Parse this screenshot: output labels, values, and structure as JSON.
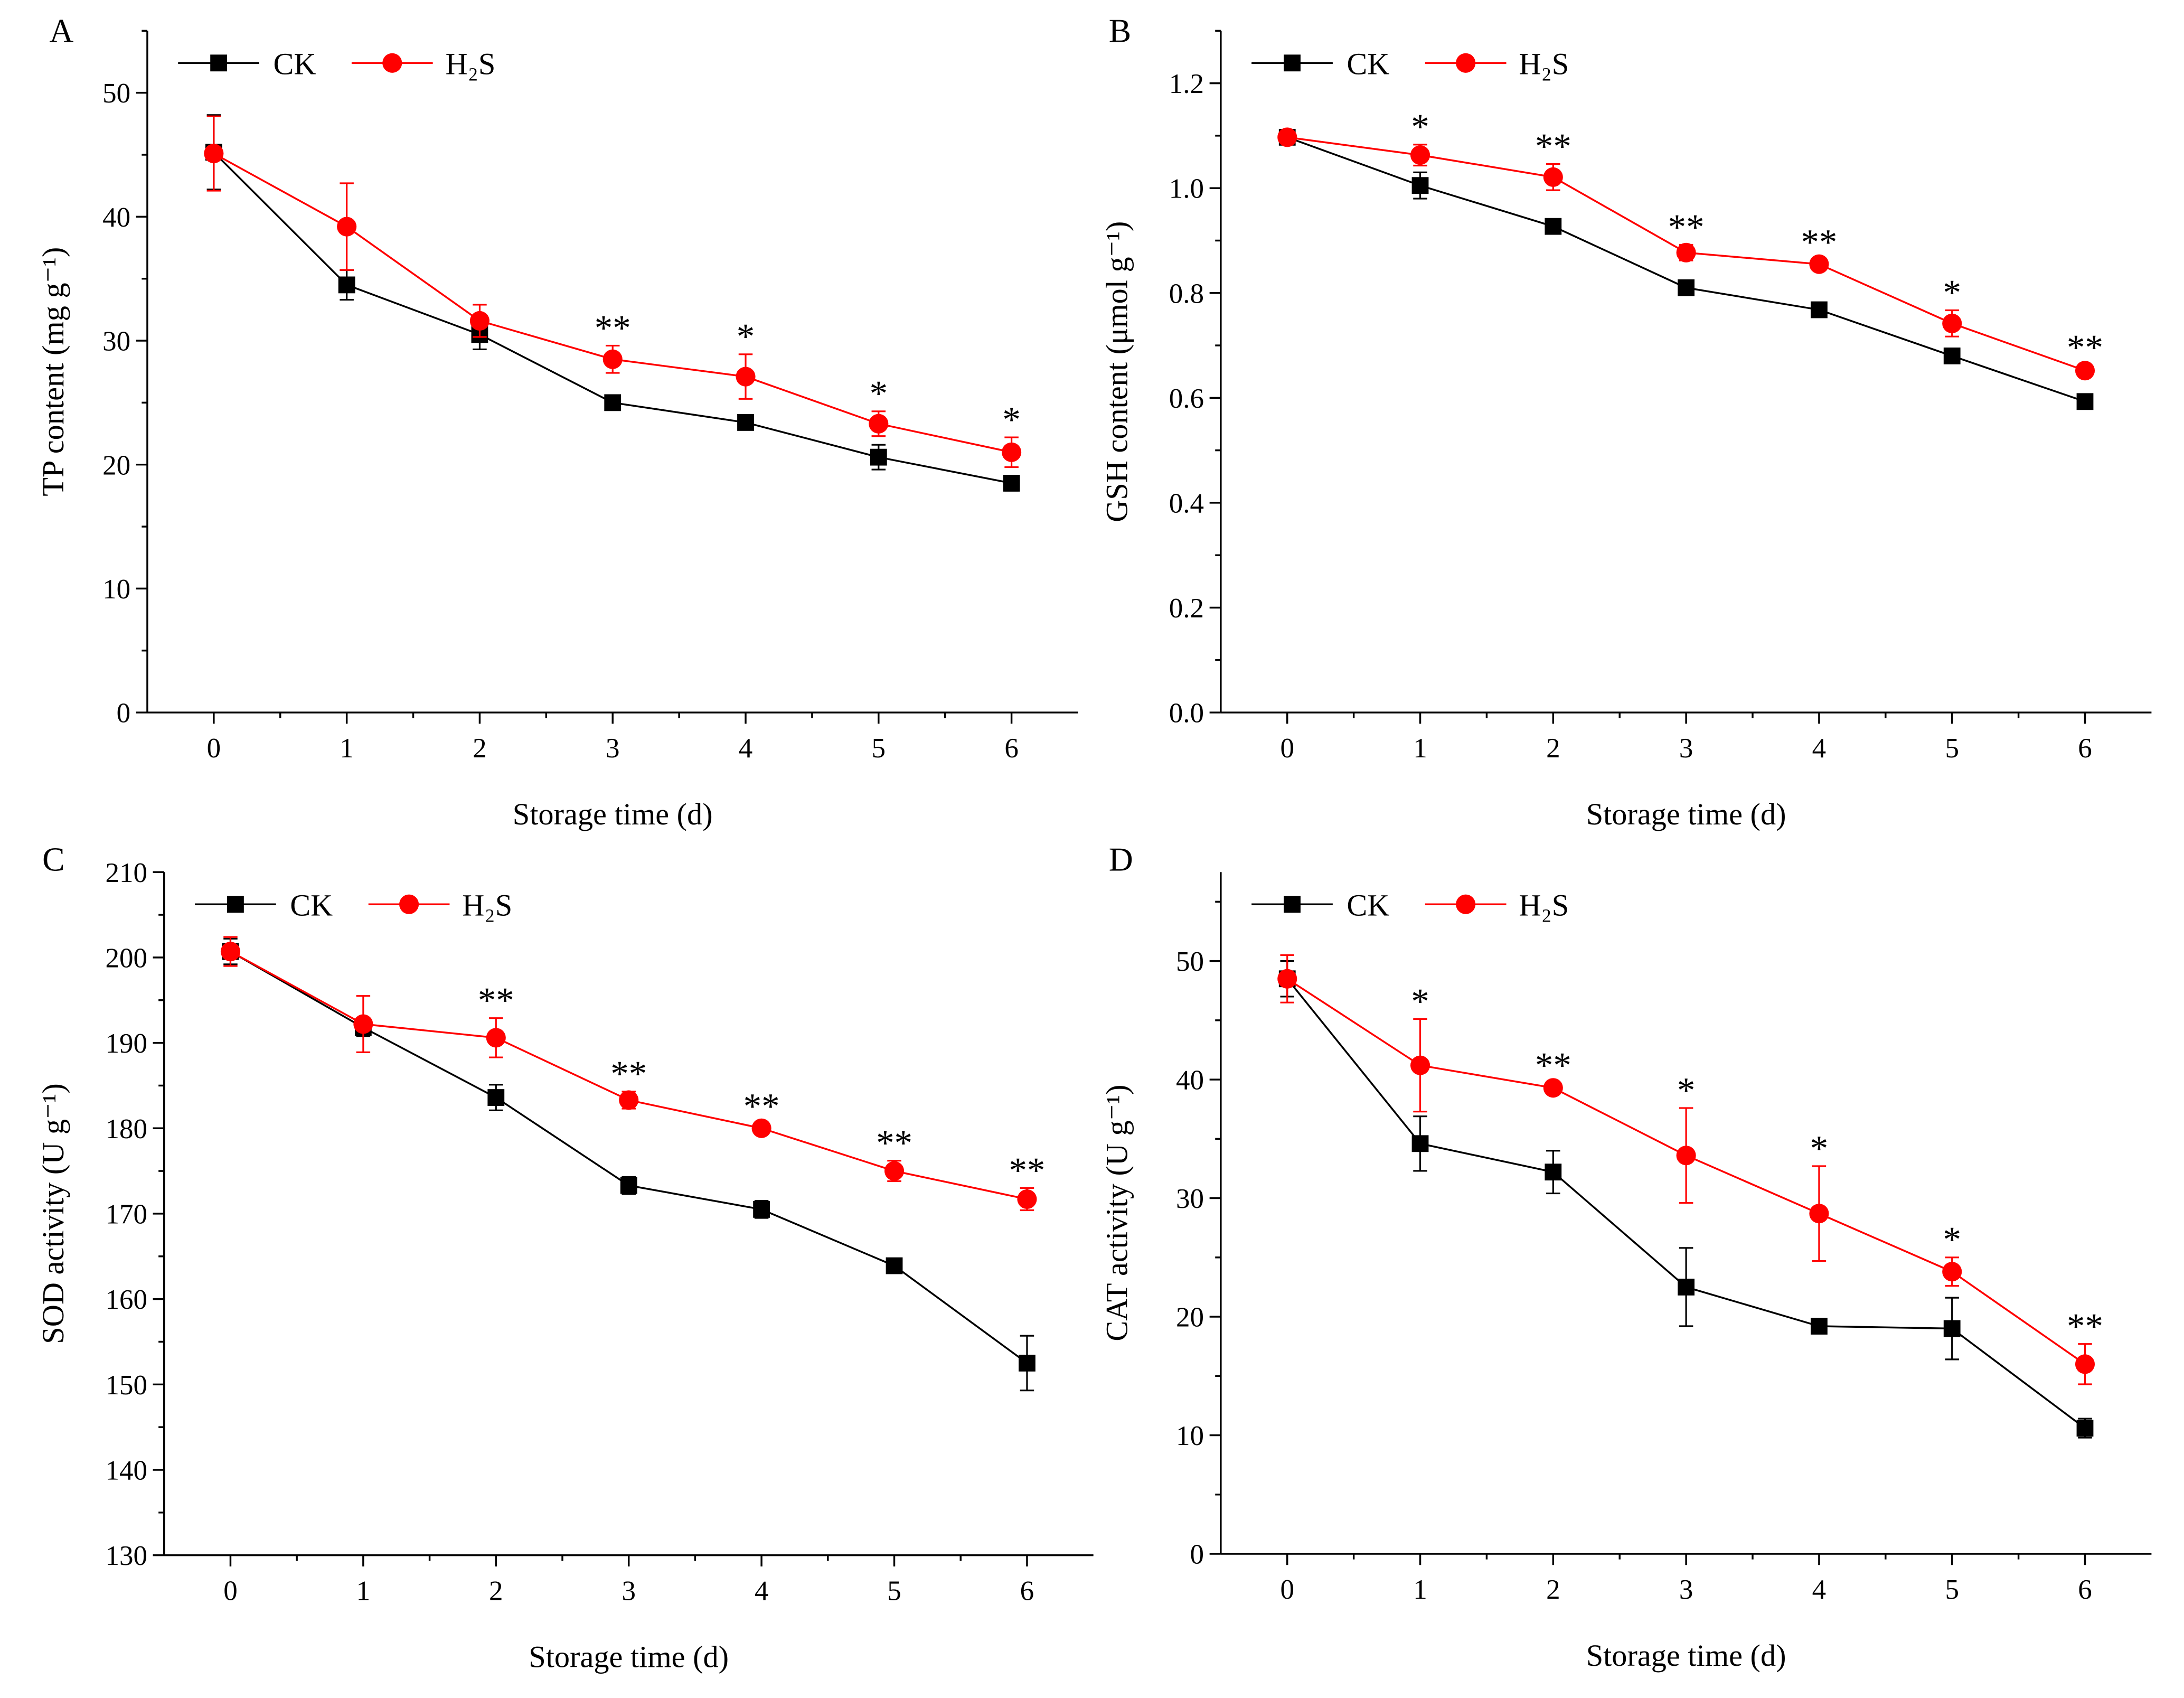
{
  "colors": {
    "CK": "#000000",
    "H2S": "#ff0000"
  },
  "chart_data": [
    {
      "type": "line",
      "panel": "A",
      "xlabel": "Storage time (d)",
      "ylabel": "TP content (mg g⁻¹)",
      "x": [
        0,
        1,
        2,
        3,
        4,
        5,
        6
      ],
      "xlim": [
        -0.5,
        6.5
      ],
      "ylim": [
        0,
        55
      ],
      "yticks": [
        0,
        10,
        20,
        30,
        40,
        50
      ],
      "ytick_labels": [
        "0",
        "10",
        "20",
        "30",
        "40",
        "50"
      ],
      "legend_placement": "top-left",
      "series": [
        {
          "name": "CK",
          "marker": "square",
          "values": [
            45.2,
            34.5,
            30.5,
            25.0,
            23.4,
            20.6,
            18.5
          ],
          "errors": [
            3.0,
            1.2,
            1.2,
            0.4,
            0.4,
            1.0,
            0.6
          ]
        },
        {
          "name": "H₂S",
          "marker": "circle",
          "values": [
            45.1,
            39.2,
            31.6,
            28.5,
            27.1,
            23.3,
            21.0
          ],
          "errors": [
            3.0,
            3.5,
            1.3,
            1.1,
            1.8,
            1.0,
            1.2
          ]
        }
      ],
      "significance": [
        "",
        "",
        "",
        "**",
        "*",
        "*",
        "*"
      ]
    },
    {
      "type": "line",
      "panel": "B",
      "xlabel": "Storage time (d)",
      "ylabel": "GSH content (μmol g⁻¹)",
      "x": [
        0,
        1,
        2,
        3,
        4,
        5,
        6
      ],
      "xlim": [
        -0.5,
        6.5
      ],
      "ylim": [
        0,
        1.3
      ],
      "yticks": [
        0,
        0.2,
        0.4,
        0.6,
        0.8,
        1.0,
        1.2
      ],
      "ytick_labels": [
        "0.0",
        "0.2",
        "0.4",
        "0.6",
        "0.8",
        "1.0",
        "1.2"
      ],
      "legend_placement": "top-left",
      "series": [
        {
          "name": "CK",
          "marker": "square",
          "values": [
            1.097,
            1.005,
            0.927,
            0.81,
            0.768,
            0.68,
            0.593
          ],
          "errors": [
            0.01,
            0.025,
            0.012,
            0.008,
            0.008,
            0.01,
            0.008
          ]
        },
        {
          "name": "H₂S",
          "marker": "circle",
          "values": [
            1.097,
            1.063,
            1.021,
            0.877,
            0.855,
            0.742,
            0.652
          ],
          "errors": [
            0.01,
            0.02,
            0.025,
            0.015,
            0.008,
            0.025,
            0.01
          ]
        }
      ],
      "significance": [
        "",
        "*",
        "**",
        "**",
        "**",
        "*",
        "**"
      ]
    },
    {
      "type": "line",
      "panel": "C",
      "xlabel": "Storage time (d)",
      "ylabel": "SOD activity (U g⁻¹)",
      "x": [
        0,
        1,
        2,
        3,
        4,
        5,
        6
      ],
      "xlim": [
        -0.5,
        6.5
      ],
      "ylim": [
        130,
        210
      ],
      "yticks": [
        130,
        140,
        150,
        160,
        170,
        180,
        190,
        200,
        210
      ],
      "ytick_labels": [
        "130",
        "140",
        "150",
        "160",
        "170",
        "180",
        "190",
        "200",
        "210"
      ],
      "legend_placement": "top-left",
      "series": [
        {
          "name": "CK",
          "marker": "square",
          "values": [
            200.7,
            191.8,
            183.6,
            173.3,
            170.5,
            163.9,
            152.5
          ],
          "errors": [
            1.5,
            1.0,
            1.5,
            1.0,
            1.0,
            0.5,
            3.2
          ]
        },
        {
          "name": "H₂S",
          "marker": "circle",
          "values": [
            200.7,
            192.2,
            190.6,
            183.3,
            180.0,
            175.0,
            171.7
          ],
          "errors": [
            1.7,
            3.3,
            2.3,
            1.0,
            0.5,
            1.2,
            1.3
          ]
        }
      ],
      "significance": [
        "",
        "",
        "**",
        "**",
        "**",
        "**",
        "**"
      ]
    },
    {
      "type": "line",
      "panel": "D",
      "xlabel": "Storage time (d)",
      "ylabel": "CAT activity (U g⁻¹)",
      "x": [
        0,
        1,
        2,
        3,
        4,
        5,
        6
      ],
      "xlim": [
        -0.5,
        6.5
      ],
      "ylim": [
        0,
        57.5
      ],
      "yticks": [
        0,
        10,
        20,
        30,
        40,
        50
      ],
      "ytick_labels": [
        "0",
        "10",
        "20",
        "30",
        "40",
        "50"
      ],
      "legend_placement": "top-left",
      "series": [
        {
          "name": "CK",
          "marker": "square",
          "values": [
            48.5,
            34.6,
            32.2,
            22.5,
            19.2,
            19.0,
            10.6
          ],
          "errors": [
            1.5,
            2.3,
            1.8,
            3.3,
            0.3,
            2.6,
            0.8
          ]
        },
        {
          "name": "H₂S",
          "marker": "circle",
          "values": [
            48.5,
            41.2,
            39.3,
            33.6,
            28.7,
            23.8,
            16.0
          ],
          "errors": [
            2.0,
            3.9,
            0.4,
            4.0,
            4.0,
            1.2,
            1.7
          ]
        }
      ],
      "significance": [
        "",
        "*",
        "**",
        "*",
        "*",
        "*",
        "**"
      ]
    }
  ]
}
